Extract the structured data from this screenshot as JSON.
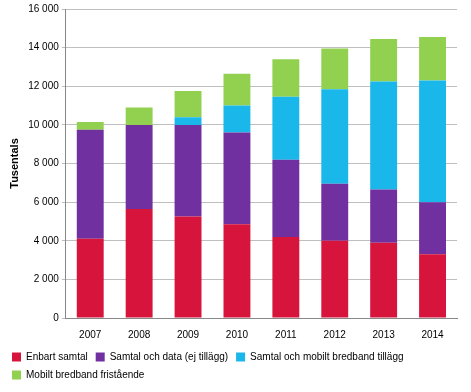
{
  "chart_data": {
    "type": "bar",
    "stacked": true,
    "y_label": "Tusentals",
    "categories": [
      "2007",
      "2008",
      "2009",
      "2010",
      "2011",
      "2012",
      "2013",
      "2014"
    ],
    "series": [
      {
        "name": "Enbart samtal",
        "color": "#d6143c",
        "values": [
          4100,
          5650,
          5250,
          4850,
          4200,
          4000,
          3900,
          3300
        ]
      },
      {
        "name": "Samtal och data (ej tillägg)",
        "color": "#7030a0",
        "values": [
          5650,
          4350,
          4750,
          4750,
          4000,
          2950,
          2750,
          2700
        ]
      },
      {
        "name": "Samtal och mobilt bredband tillägg",
        "color": "#1ab7ea",
        "values": [
          0,
          0,
          400,
          1400,
          3250,
          4900,
          5600,
          6300
        ]
      },
      {
        "name": "Mobilt bredband fristående",
        "color": "#92d050",
        "values": [
          400,
          900,
          1350,
          1650,
          1950,
          2100,
          2200,
          2250
        ]
      }
    ],
    "ylim": [
      0,
      16000
    ],
    "yticks": [
      0,
      {
        "value": 2000,
        "label": "2 000"
      },
      {
        "value": 4000,
        "label": "4 000"
      },
      {
        "value": 6000,
        "label": "6 000"
      },
      {
        "value": 8000,
        "label": "8 000"
      },
      {
        "value": 10000,
        "label": "10 000"
      },
      {
        "value": 12000,
        "label": "12 000"
      },
      {
        "value": 14000,
        "label": "14 000"
      },
      {
        "value": 16000,
        "label": "16 000"
      }
    ],
    "grid": true,
    "legend": "bottom"
  }
}
